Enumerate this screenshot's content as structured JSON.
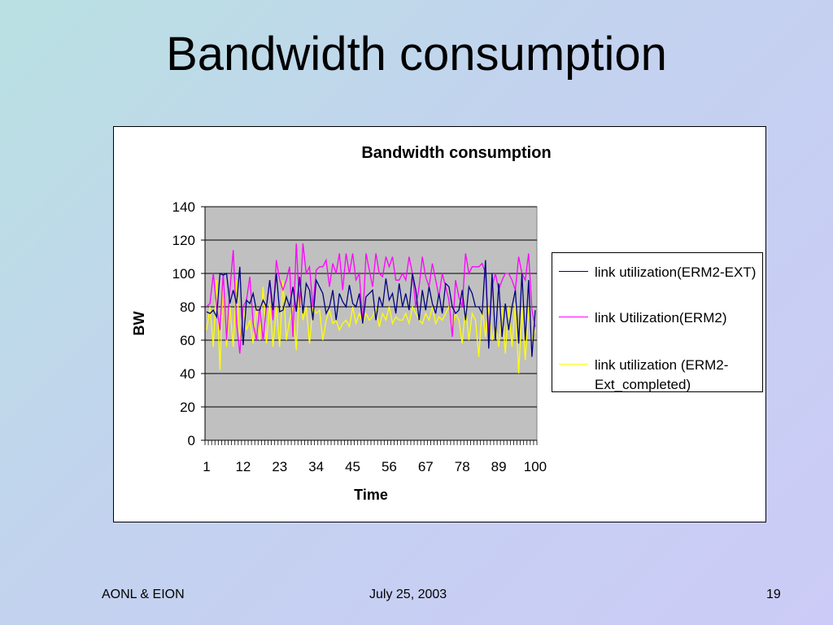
{
  "slide": {
    "title": "Bandwidth consumption",
    "footer_left": "AONL & EION",
    "footer_center": "July 25, 2003",
    "footer_right": "19"
  },
  "chart_data": {
    "type": "line",
    "title": "Bandwidth consumption",
    "xlabel": "Time",
    "ylabel": "BW",
    "xlim": [
      1,
      100
    ],
    "ylim": [
      0,
      140
    ],
    "y_ticks": [
      0,
      20,
      40,
      60,
      80,
      100,
      120,
      140
    ],
    "x_tick_labels": [
      "1",
      "12",
      "23",
      "34",
      "45",
      "56",
      "67",
      "78",
      "89",
      "100"
    ],
    "grid": true,
    "plot_background": "#c0c0c0",
    "legend_position": "right",
    "x": [
      1,
      2,
      3,
      4,
      5,
      6,
      7,
      8,
      9,
      10,
      11,
      12,
      13,
      14,
      15,
      16,
      17,
      18,
      19,
      20,
      21,
      22,
      23,
      24,
      25,
      26,
      27,
      28,
      29,
      30,
      31,
      32,
      33,
      34,
      35,
      36,
      37,
      38,
      39,
      40,
      41,
      42,
      43,
      44,
      45,
      46,
      47,
      48,
      49,
      50,
      51,
      52,
      53,
      54,
      55,
      56,
      57,
      58,
      59,
      60,
      61,
      62,
      63,
      64,
      65,
      66,
      67,
      68,
      69,
      70,
      71,
      72,
      73,
      74,
      75,
      76,
      77,
      78,
      79,
      80,
      81,
      82,
      83,
      84,
      85,
      86,
      87,
      88,
      89,
      90,
      91,
      92,
      93,
      94,
      95,
      96,
      97,
      98,
      99,
      100
    ],
    "series": [
      {
        "name": "link utilization(ERM2-EXT)",
        "color": "#00007f",
        "values": [
          77,
          76,
          78,
          74,
          100,
          99,
          100,
          82,
          90,
          82,
          104,
          57,
          84,
          82,
          88,
          78,
          78,
          84,
          80,
          96,
          78,
          100,
          77,
          78,
          86,
          80,
          92,
          77,
          98,
          76,
          94,
          90,
          72,
          96,
          92,
          88,
          76,
          80,
          90,
          72,
          88,
          83,
          80,
          93,
          82,
          80,
          88,
          70,
          86,
          88,
          90,
          72,
          86,
          80,
          97,
          84,
          88,
          76,
          94,
          80,
          88,
          78,
          100,
          90,
          72,
          90,
          78,
          92,
          82,
          76,
          88,
          76,
          94,
          92,
          80,
          76,
          78,
          90,
          72,
          92,
          88,
          80,
          80,
          76,
          108,
          55,
          100,
          60,
          94,
          62,
          82,
          66,
          80,
          90,
          58,
          100,
          60,
          96,
          50,
          78
        ]
      },
      {
        "name": "link Utilization(ERM2)",
        "color": "#ff00ff",
        "values": [
          80,
          82,
          100,
          80,
          66,
          100,
          60,
          90,
          114,
          70,
          52,
          80,
          84,
          98,
          70,
          60,
          80,
          60,
          80,
          96,
          72,
          108,
          96,
          90,
          96,
          104,
          62,
          118,
          80,
          118,
          100,
          104,
          80,
          102,
          104,
          104,
          108,
          92,
          106,
          100,
          112,
          90,
          112,
          100,
          112,
          96,
          100,
          70,
          112,
          102,
          92,
          112,
          100,
          98,
          110,
          104,
          110,
          96,
          96,
          100,
          96,
          110,
          100,
          80,
          92,
          110,
          98,
          92,
          106,
          96,
          86,
          100,
          92,
          84,
          62,
          96,
          86,
          80,
          112,
          100,
          104,
          104,
          104,
          106,
          100,
          64,
          92,
          100,
          90,
          96,
          100,
          100,
          96,
          90,
          110,
          100,
          96,
          112,
          78,
          68
        ]
      },
      {
        "name": "link utilization (ERM2-Ext_completed)",
        "color": "#ffff00",
        "values": [
          66,
          80,
          56,
          96,
          42,
          96,
          56,
          80,
          56,
          96,
          60,
          80,
          66,
          72,
          58,
          80,
          60,
          92,
          58,
          82,
          56,
          80,
          56,
          96,
          60,
          72,
          80,
          54,
          92,
          72,
          80,
          58,
          80,
          76,
          78,
          60,
          72,
          78,
          70,
          72,
          66,
          70,
          72,
          68,
          80,
          70,
          76,
          70,
          76,
          72,
          74,
          80,
          68,
          76,
          72,
          80,
          70,
          74,
          72,
          72,
          76,
          70,
          80,
          76,
          72,
          70,
          76,
          72,
          80,
          70,
          74,
          72,
          76,
          80,
          68,
          76,
          72,
          58,
          80,
          60,
          76,
          72,
          50,
          80,
          62,
          80,
          60,
          70,
          56,
          80,
          52,
          80,
          56,
          82,
          40,
          80,
          48,
          80,
          60,
          66
        ]
      }
    ]
  }
}
